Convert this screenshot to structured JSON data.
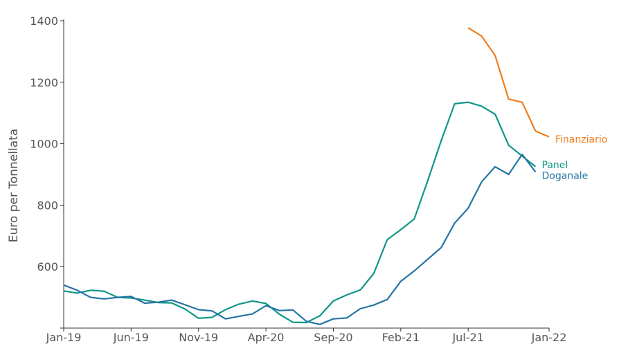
{
  "chart_data": {
    "type": "line",
    "title": "",
    "xlabel": "",
    "ylabel": "Euro per Tonnellata",
    "ylim": [
      400,
      1400
    ],
    "yticks": [
      600,
      800,
      1000,
      1200,
      1400
    ],
    "xticks": [
      "Jan-19",
      "Jun-19",
      "Nov-19",
      "Apr-20",
      "Sep-20",
      "Feb-21",
      "Jul-21",
      "Jan-22"
    ],
    "grid": false,
    "legend": "direct labels at line ends",
    "x_start": "Jan-19",
    "series": [
      {
        "name": "Panel",
        "color": "#0e9686",
        "start_month_index": 0,
        "values": [
          521,
          514,
          523,
          520,
          500,
          498,
          491,
          483,
          482,
          462,
          432,
          435,
          460,
          478,
          488,
          480,
          445,
          419,
          418,
          440,
          488,
          508,
          524,
          578,
          688,
          720,
          755,
          880,
          1010,
          1130,
          1135,
          1122,
          1096,
          995,
          960,
          925
        ]
      },
      {
        "name": "Doganale",
        "color": "#2474a6",
        "start_month_index": 0,
        "values": [
          540,
          523,
          500,
          495,
          500,
          503,
          481,
          484,
          491,
          476,
          460,
          456,
          430,
          438,
          446,
          473,
          457,
          459,
          422,
          412,
          430,
          433,
          463,
          475,
          493,
          552,
          586,
          624,
          662,
          742,
          790,
          876,
          925,
          900,
          965,
          908
        ]
      },
      {
        "name": "Finanziario",
        "color": "#f07d1a",
        "start_month_index": 30,
        "values": [
          1377,
          1350,
          1287,
          1145,
          1135,
          1041,
          1022
        ]
      }
    ]
  }
}
